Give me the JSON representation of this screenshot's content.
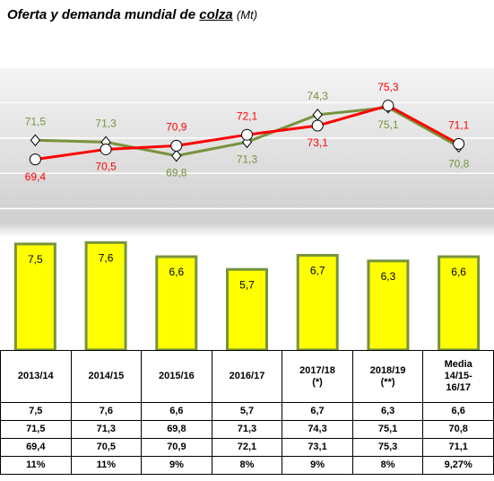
{
  "chart_data": {
    "type": "bar_line",
    "title": "Oferta y demanda mundial de",
    "title_emphasis": "colza",
    "unit": "(Mt)",
    "categories": [
      "2013/14",
      "2014/15",
      "2015/16",
      "2016/17",
      "2017/18 (*)",
      "2018/19 (**)",
      "Media 14/15-16/17"
    ],
    "ylim": [
      0,
      20
    ],
    "yticks": [
      0,
      2.5,
      5,
      7.5,
      10,
      12.5,
      15,
      17.5,
      20
    ],
    "y2lim": [
      48.5,
      79.5
    ],
    "grid": true,
    "series": [
      {
        "type": "bar",
        "color": "#ffff00",
        "edge_color": "#77933c",
        "values": [
          7.5,
          7.6,
          6.6,
          5.7,
          6.7,
          6.3,
          6.6
        ],
        "value_labels": [
          "7,5",
          "7,6",
          "6,6",
          "5,7",
          "6,7",
          "6,3",
          "6,6"
        ]
      },
      {
        "type": "line",
        "axis": "y2",
        "color": "#77933c",
        "marker": "diamond",
        "values": [
          71.5,
          71.3,
          69.8,
          71.3,
          74.3,
          75.1,
          70.8
        ],
        "value_labels": [
          "71,5",
          "71,3",
          "69,8",
          "71,3",
          "74,3",
          "75,1",
          "70,8"
        ]
      },
      {
        "type": "line",
        "axis": "y2",
        "color": "#ff0000",
        "marker": "circle",
        "values": [
          69.4,
          70.5,
          70.9,
          72.1,
          73.1,
          75.3,
          71.1
        ],
        "value_labels": [
          "69,4",
          "70,5",
          "70,9",
          "72,1",
          "73,1",
          "75,3",
          "71,1"
        ]
      }
    ],
    "ratio": {
      "values": [
        11,
        11,
        9,
        8,
        9,
        8,
        9.27
      ],
      "value_labels": [
        "11%",
        "11%",
        "9%",
        "8%",
        "9%",
        "8%",
        "9,27%"
      ]
    }
  }
}
